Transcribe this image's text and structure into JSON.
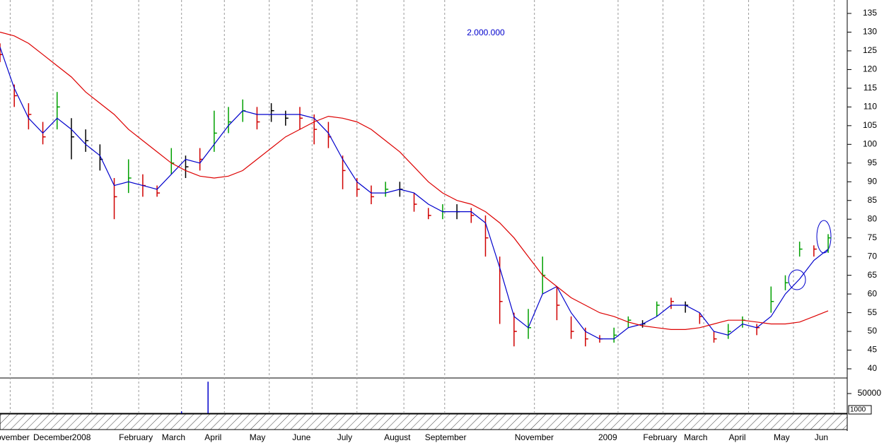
{
  "chart_data": {
    "type": "ohlc",
    "annotations": [
      "2.000.000"
    ],
    "xlim": [
      0,
      415
    ],
    "xticks": [
      {
        "value": 5,
        "label": "November"
      },
      {
        "value": 26,
        "label": "December"
      },
      {
        "value": 45,
        "label": "2008"
      },
      {
        "value": 68,
        "label": "February"
      },
      {
        "value": 89,
        "label": "March"
      },
      {
        "value": 110,
        "label": "April"
      },
      {
        "value": 132,
        "label": "May"
      },
      {
        "value": 153,
        "label": "June"
      },
      {
        "value": 175,
        "label": "July"
      },
      {
        "value": 198,
        "label": "August"
      },
      {
        "value": 218,
        "label": "September"
      },
      {
        "value": 262,
        "label": "November"
      },
      {
        "value": 303,
        "label": "2009"
      },
      {
        "value": 325,
        "label": "February"
      },
      {
        "value": 345,
        "label": "March"
      },
      {
        "value": 367,
        "label": "April"
      },
      {
        "value": 389,
        "label": "May"
      },
      {
        "value": 409,
        "label": "Jun"
      }
    ],
    "ylim": [
      40,
      135
    ],
    "yticks": [
      40,
      45,
      50,
      55,
      60,
      65,
      70,
      75,
      80,
      85,
      90,
      95,
      100,
      105,
      110,
      115,
      120,
      125,
      130,
      135
    ],
    "x": [
      0,
      7,
      14,
      21,
      28,
      35,
      42,
      49,
      56,
      63,
      70,
      77,
      84,
      91,
      98,
      105,
      112,
      119,
      126,
      133,
      140,
      147,
      154,
      161,
      168,
      175,
      182,
      189,
      196,
      203,
      210,
      217,
      224,
      231,
      238,
      245,
      252,
      259,
      266,
      273,
      280,
      287,
      294,
      301,
      308,
      315,
      322,
      329,
      336,
      343,
      350,
      357,
      364,
      371,
      378,
      385,
      392,
      399,
      406
    ],
    "high": [
      127,
      116,
      111,
      106,
      114,
      107,
      104,
      100,
      91,
      96,
      92,
      89,
      99,
      97,
      99,
      109,
      110,
      112,
      110,
      111,
      109,
      110,
      108,
      106,
      97,
      91,
      89,
      90,
      90,
      87,
      83,
      84,
      84,
      83,
      81,
      70,
      55,
      56,
      70,
      62,
      54,
      51,
      49,
      51,
      54,
      53,
      58,
      59,
      58,
      55,
      50,
      52,
      54,
      52,
      62,
      65,
      74,
      73,
      76
    ],
    "low": [
      122,
      110,
      104,
      100,
      104,
      96,
      98,
      93,
      80,
      87,
      86,
      86,
      92,
      91,
      93,
      98,
      103,
      106,
      104,
      106,
      105,
      104,
      100,
      99,
      88,
      86,
      84,
      86,
      86,
      82,
      80,
      80,
      80,
      79,
      70,
      52,
      46,
      48,
      60,
      53,
      48,
      46,
      47,
      47,
      51,
      51,
      54,
      56,
      55,
      52,
      47,
      48,
      51,
      49,
      55,
      61,
      70,
      70,
      71
    ],
    "close": [
      124,
      113,
      108,
      102,
      110,
      102,
      101,
      96,
      86,
      91,
      89,
      87,
      95,
      94,
      96,
      103,
      106,
      109,
      106,
      109,
      107,
      107,
      104,
      102,
      93,
      88,
      86,
      88,
      88,
      84,
      81,
      82,
      82,
      81,
      75,
      58,
      50,
      51,
      65,
      57,
      50,
      48,
      48,
      49,
      53,
      52,
      57,
      58,
      57,
      54,
      48,
      50,
      53,
      51,
      58,
      63,
      72,
      72,
      75
    ],
    "bar_colors": [
      "#d00000",
      "#d00000",
      "#d00000",
      "#d00000",
      "#00a000",
      "#000000",
      "#000000",
      "#000000",
      "#d00000",
      "#00a000",
      "#d00000",
      "#d00000",
      "#00a000",
      "#000000",
      "#d00000",
      "#00a000",
      "#00a000",
      "#00a000",
      "#d00000",
      "#000000",
      "#000000",
      "#d00000",
      "#d00000",
      "#d00000",
      "#d00000",
      "#d00000",
      "#d00000",
      "#00a000",
      "#000000",
      "#d00000",
      "#d00000",
      "#00a000",
      "#000000",
      "#d00000",
      "#d00000",
      "#d00000",
      "#d00000",
      "#00a000",
      "#00a000",
      "#d00000",
      "#d00000",
      "#d00000",
      "#d00000",
      "#00a000",
      "#00a000",
      "#000000",
      "#00a000",
      "#d00000",
      "#000000",
      "#d00000",
      "#d00000",
      "#00a000",
      "#00a000",
      "#d00000",
      "#00a000",
      "#00a000",
      "#00a000",
      "#d00000",
      "#00a000"
    ],
    "series": [
      {
        "color": "#0000cc",
        "values": [
          126,
          115,
          107,
          103,
          107,
          104,
          100,
          97,
          89,
          90,
          89,
          88,
          92,
          96,
          95,
          100,
          105,
          109,
          108,
          108,
          108,
          108,
          107,
          103,
          96,
          90,
          87,
          87,
          88,
          87,
          84,
          82,
          82,
          82,
          79,
          67,
          54,
          51,
          60,
          62,
          55,
          50,
          48,
          48,
          51,
          52,
          54,
          57,
          57,
          55,
          50,
          49,
          52,
          51,
          54,
          60,
          64,
          69,
          72
        ]
      },
      {
        "color": "#dd0000",
        "values": [
          130,
          129,
          127,
          124,
          121,
          118,
          114,
          111,
          108,
          104,
          101,
          98,
          95,
          93,
          91.5,
          91,
          91.5,
          93,
          96,
          99,
          102,
          104,
          106,
          107.5,
          107,
          106,
          104,
          101,
          98,
          94,
          90,
          87,
          85,
          84,
          82,
          79,
          75,
          70,
          65,
          62,
          59,
          57,
          55,
          54,
          52.5,
          51.5,
          51,
          50.5,
          50.5,
          51,
          52,
          53,
          53,
          52.5,
          52,
          52,
          52.5,
          54,
          55.5
        ]
      }
    ],
    "volume": {
      "x": [
        89,
        102
      ],
      "values": [
        5000,
        80000
      ],
      "ylim": [
        0,
        87500
      ],
      "yticks": [
        50000
      ],
      "label": "1000",
      "color": "#0000cc"
    }
  }
}
